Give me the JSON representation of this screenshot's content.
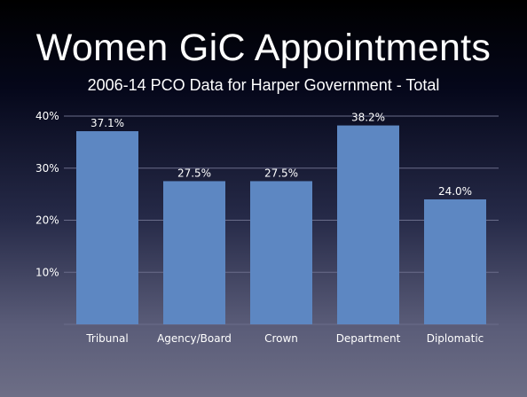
{
  "title": "Women GiC Appointments",
  "subtitle": "2006-14 PCO Data for Harper Government - Total",
  "colors": {
    "bar": "#5d87c2",
    "grid": "#6a6d8a",
    "text": "#ffffff"
  },
  "chart_data": {
    "type": "bar",
    "categories": [
      "Tribunal",
      "Agency/Board",
      "Crown",
      "Department",
      "Diplomatic"
    ],
    "values": [
      37.1,
      27.5,
      27.5,
      38.2,
      24.0
    ],
    "data_labels": [
      "37.1%",
      "27.5%",
      "27.5%",
      "38.2%",
      "24.0%"
    ],
    "y_ticks": [
      10,
      20,
      30,
      40
    ],
    "y_tick_labels": [
      "10%",
      "20%",
      "30%",
      "40%"
    ],
    "ylim": [
      0,
      40
    ],
    "grid": true,
    "legend": "none",
    "xlabel": "",
    "ylabel": ""
  }
}
